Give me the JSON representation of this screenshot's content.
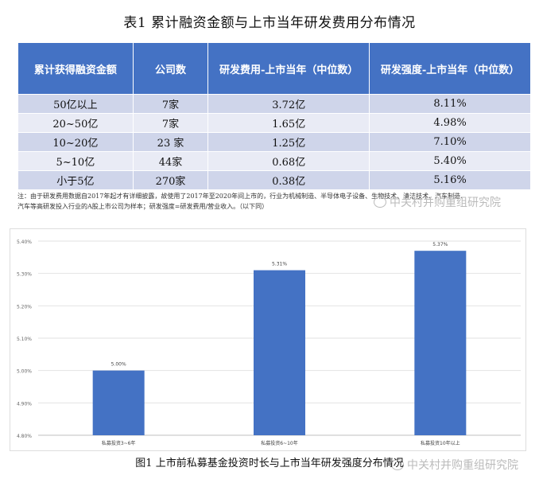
{
  "table": {
    "title": "表1 累计融资金额与上市当年研发费用分布情况",
    "headers": [
      "累计获得融资金额",
      "公司数",
      "研发费用-上市当年（中位数）",
      "研发强度-上市当年（中位数）"
    ],
    "rows": [
      [
        "50亿以上",
        "7家",
        "3.72亿",
        "8.11%"
      ],
      [
        "20~50亿",
        "7家",
        "1.65亿",
        "4.98%"
      ],
      [
        "10~20亿",
        "23 家",
        "1.25亿",
        "7.10%"
      ],
      [
        "5~10亿",
        "44家",
        "0.68亿",
        "5.40%"
      ],
      [
        "小于5亿",
        "270家",
        "0.38亿",
        "5.16%"
      ]
    ],
    "note_line1": "注：由于研发费用数据自2017年起才有详细披露，故使用了2017年至2020年间上市的，行业为机械制造、半导体电子设备、生物技术、清洁技术、汽车制造、",
    "note_line2": "汽车等高研发投入行业的A股上市公司为样本；研发强度=研发费用/营业收入。（以下同）"
  },
  "watermark": "中关村并购重组研究院",
  "chart_data": {
    "type": "bar",
    "title": "",
    "caption": "图1 上市前私募基金投资时长与上市当年研发强度分布情况",
    "categories": [
      "私募投资3~6年",
      "私募投资6~10年",
      "私募投资10年以上"
    ],
    "values": [
      5.0,
      5.31,
      5.37
    ],
    "data_labels": [
      "5.00%",
      "5.31%",
      "5.37%"
    ],
    "ylim": [
      4.8,
      5.4
    ],
    "yticks": [
      "5.40%",
      "5.30%",
      "5.20%",
      "5.10%",
      "5.00%",
      "4.90%",
      "4.80%"
    ],
    "grid": true,
    "bar_color": "#4472c4",
    "xlabel": "",
    "ylabel": ""
  }
}
